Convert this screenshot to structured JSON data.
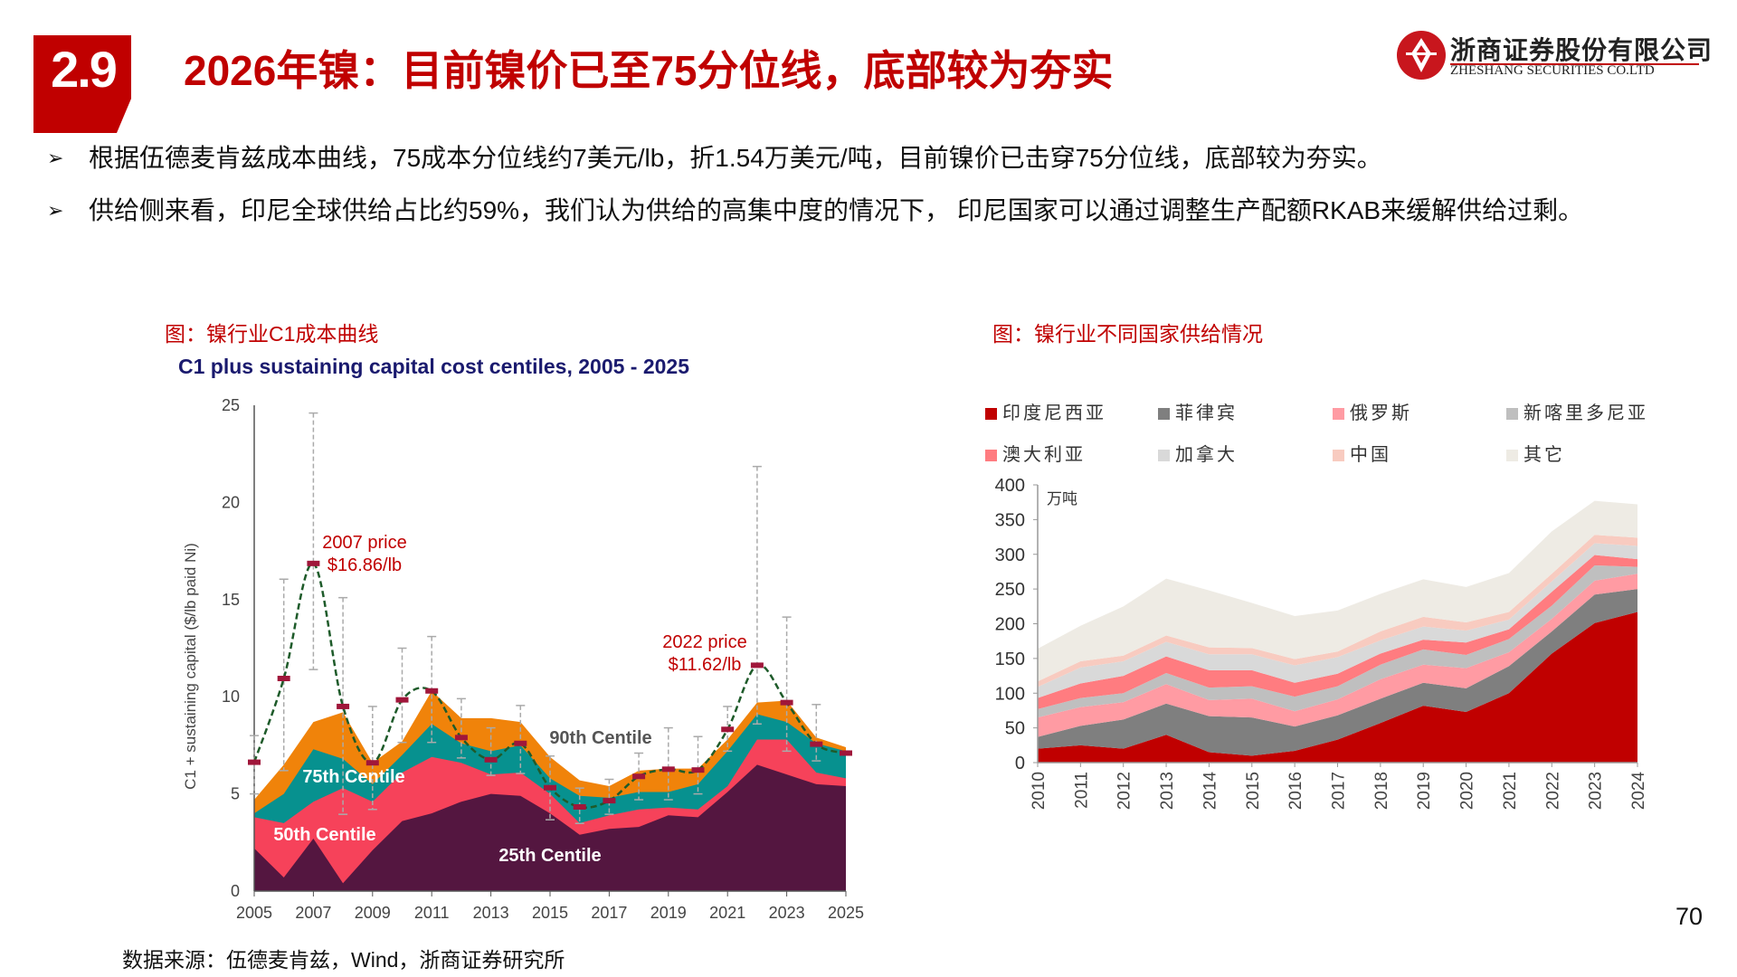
{
  "header": {
    "section_number": "2.9",
    "title": "2026年镍：目前镍价已至75分位线，底部较为夯实",
    "logo_cn": "浙商证券股份有限公司",
    "logo_en": "ZHESHANG SECURITIES CO.LTD",
    "brand_color": "#c00000"
  },
  "bullets": [
    {
      "icon": "arrow-bullet-icon",
      "text": "根据伍德麦肯兹成本曲线，75成本分位线约7美元/lb，折1.54万美元/吨，目前镍价已击穿75分位线，底部较为夯实。"
    },
    {
      "icon": "arrow-bullet-icon",
      "text": "供给侧来看，印尼全球供给占比约59%，我们认为供给的高集中度的情况下， 印尼国家可以通过调整生产配额RKAB来缓解供给过剩。"
    }
  ],
  "figures": {
    "left_caption": "图：镍行业C1成本曲线",
    "right_caption": "图：镍行业不同国家供给情况"
  },
  "source": "数据来源：伍德麦肯兹，Wind，浙商证券研究所",
  "page_number": "70",
  "chart_data": [
    {
      "type": "area",
      "stacked": false,
      "title": "C1 plus sustaining capital cost centiles, 2005 - 2025",
      "xlabel": "",
      "ylabel": "C1 + sustaining capital ($/lb paid Ni)",
      "ylim": [
        0,
        25
      ],
      "yticks": [
        0,
        5,
        10,
        15,
        20,
        25
      ],
      "xtick_labels": [
        "2005",
        "2007",
        "2009",
        "2011",
        "2013",
        "2015",
        "2017",
        "2019",
        "2021",
        "2023",
        "2025"
      ],
      "grid": false,
      "x": [
        2005,
        2006,
        2007,
        2008,
        2009,
        2010,
        2011,
        2012,
        2013,
        2014,
        2015,
        2016,
        2017,
        2018,
        2019,
        2020,
        2021,
        2022,
        2023,
        2024,
        2025
      ],
      "series": [
        {
          "name": "90th Centile",
          "color": "#f0830a",
          "values": [
            4.7,
            6.5,
            8.7,
            9.2,
            6.6,
            7.7,
            10.3,
            8.9,
            8.9,
            8.7,
            6.9,
            5.7,
            5.4,
            6.2,
            6.3,
            6.3,
            7.8,
            9.7,
            9.8,
            7.9,
            7.4
          ]
        },
        {
          "name": "75th Centile",
          "color": "#07918f",
          "values": [
            4.0,
            5.0,
            7.3,
            6.8,
            5.5,
            7.0,
            8.6,
            7.6,
            7.2,
            7.5,
            5.8,
            4.9,
            4.8,
            5.1,
            5.1,
            5.5,
            7.2,
            9.1,
            8.7,
            7.6,
            7.2
          ]
        },
        {
          "name": "50th Centile",
          "color": "#f6425a",
          "values": [
            3.8,
            3.5,
            4.6,
            5.3,
            4.6,
            6.1,
            6.9,
            6.6,
            6.0,
            6.1,
            5.0,
            3.5,
            3.9,
            4.2,
            4.3,
            4.2,
            5.4,
            7.8,
            7.8,
            6.1,
            5.8
          ]
        },
        {
          "name": "25th Centile",
          "color": "#541640",
          "values": [
            2.2,
            0.7,
            2.7,
            0.4,
            2.1,
            3.6,
            4.0,
            4.6,
            5.0,
            4.9,
            4.0,
            2.9,
            3.2,
            3.3,
            3.9,
            3.8,
            5.1,
            6.5,
            6.0,
            5.5,
            5.4
          ]
        }
      ],
      "price": {
        "color": "#1e5b2a",
        "marker_color": "#a0163a",
        "values": [
          6.63,
          10.94,
          16.86,
          9.5,
          6.6,
          9.84,
          10.3,
          7.9,
          6.76,
          7.6,
          5.32,
          4.33,
          4.65,
          5.9,
          6.27,
          6.23,
          8.32,
          11.62,
          9.7,
          7.56,
          7.1
        ],
        "range_high": [
          8.0,
          16.05,
          24.6,
          15.1,
          9.5,
          12.5,
          13.1,
          9.9,
          8.4,
          9.55,
          6.95,
          5.3,
          5.75,
          7.1,
          8.4,
          7.95,
          9.5,
          21.85,
          14.1,
          9.6,
          null
        ],
        "range_low": [
          5.0,
          6.2,
          11.4,
          3.95,
          4.2,
          7.65,
          7.65,
          6.85,
          5.95,
          6.05,
          3.67,
          3.48,
          3.95,
          4.7,
          4.7,
          5.0,
          7.2,
          8.6,
          7.2,
          6.7,
          null
        ]
      },
      "annotations": [
        {
          "line1": "2007 price",
          "line2": "$16.86/lb",
          "color": "#c00000"
        },
        {
          "line1": "2022 price",
          "line2": "$11.62/lb",
          "color": "#c00000"
        }
      ]
    },
    {
      "type": "area",
      "stacked": true,
      "title": "",
      "unit_label": "万吨",
      "ylim": [
        0,
        400
      ],
      "yticks": [
        0,
        50,
        100,
        150,
        200,
        250,
        300,
        350,
        400
      ],
      "grid": false,
      "legend_position": "top",
      "categories": [
        "2010",
        "2011",
        "2012",
        "2013",
        "2014",
        "2015",
        "2016",
        "2017",
        "2018",
        "2019",
        "2020",
        "2021",
        "2022",
        "2023",
        "2024"
      ],
      "series": [
        {
          "name": "印度尼西亚",
          "color": "#c00000",
          "values": [
            20,
            25,
            20,
            40,
            15,
            10,
            17,
            33,
            57,
            82,
            73,
            100,
            157,
            201,
            217
          ]
        },
        {
          "name": "菲律宾",
          "color": "#7f7f7f",
          "values": [
            17,
            28,
            42,
            45,
            52,
            55,
            35,
            35,
            35,
            33,
            34,
            39,
            32,
            41,
            33
          ]
        },
        {
          "name": "俄罗斯",
          "color": "#ff9ba3",
          "values": [
            28,
            27,
            25,
            28,
            23,
            27,
            22,
            23,
            28,
            26,
            29,
            20,
            18,
            20,
            22
          ]
        },
        {
          "name": "新喀里多尼亚",
          "color": "#bfbfbf",
          "values": [
            12,
            13,
            13,
            16,
            18,
            18,
            21,
            19,
            21,
            22,
            19,
            19,
            19,
            22,
            10
          ]
        },
        {
          "name": "澳大利亚",
          "color": "#ff7c80",
          "values": [
            16,
            21,
            25,
            24,
            25,
            23,
            20,
            18,
            16,
            14,
            18,
            14,
            20,
            15,
            11
          ]
        },
        {
          "name": "加拿大",
          "color": "#d9d9d9",
          "values": [
            16,
            23,
            21,
            21,
            23,
            23,
            25,
            24,
            19,
            19,
            17,
            14,
            15,
            17,
            19
          ]
        },
        {
          "name": "中国",
          "color": "#f8cbc0",
          "values": [
            8,
            9,
            8,
            9,
            10,
            9,
            9,
            8,
            13,
            14,
            12,
            11,
            11,
            12,
            12
          ]
        },
        {
          "name": "其它",
          "color": "#eeebe4",
          "values": [
            47,
            51,
            71,
            82,
            82,
            65,
            62,
            59,
            54,
            54,
            51,
            56,
            61,
            49,
            48
          ]
        }
      ]
    }
  ]
}
